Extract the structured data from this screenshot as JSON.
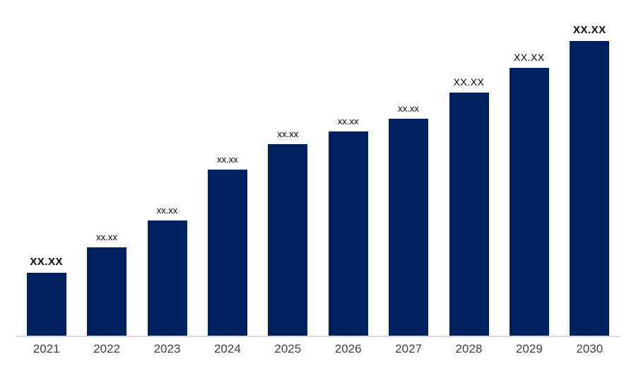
{
  "chart_data": {
    "type": "bar",
    "title": "",
    "xlabel": "",
    "ylabel": "",
    "categories": [
      "2021",
      "2022",
      "2023",
      "2024",
      "2025",
      "2026",
      "2027",
      "2028",
      "2029",
      "2030"
    ],
    "bar_labels": [
      "XX.XX",
      "xx.xx",
      "xx.xx",
      "xx.xx",
      "xx.xx",
      "xx.xx",
      "xx.xx",
      "XX.XX",
      "XX.XX",
      "XX.XX"
    ],
    "label_styles": [
      "bold",
      "small",
      "small",
      "small",
      "small",
      "small",
      "small",
      "large",
      "large",
      "bold"
    ],
    "values_relative": [
      89,
      125,
      163,
      235,
      271,
      289,
      307,
      344,
      379,
      417
    ],
    "value_labels_are_placeholders": true,
    "y_axis_visible": false,
    "grid": false,
    "legend": false,
    "bar_color": "#002060",
    "data_label_color": "#000000",
    "axis_label_color": "#404040",
    "axis_line_color": "#d9d9d9"
  }
}
